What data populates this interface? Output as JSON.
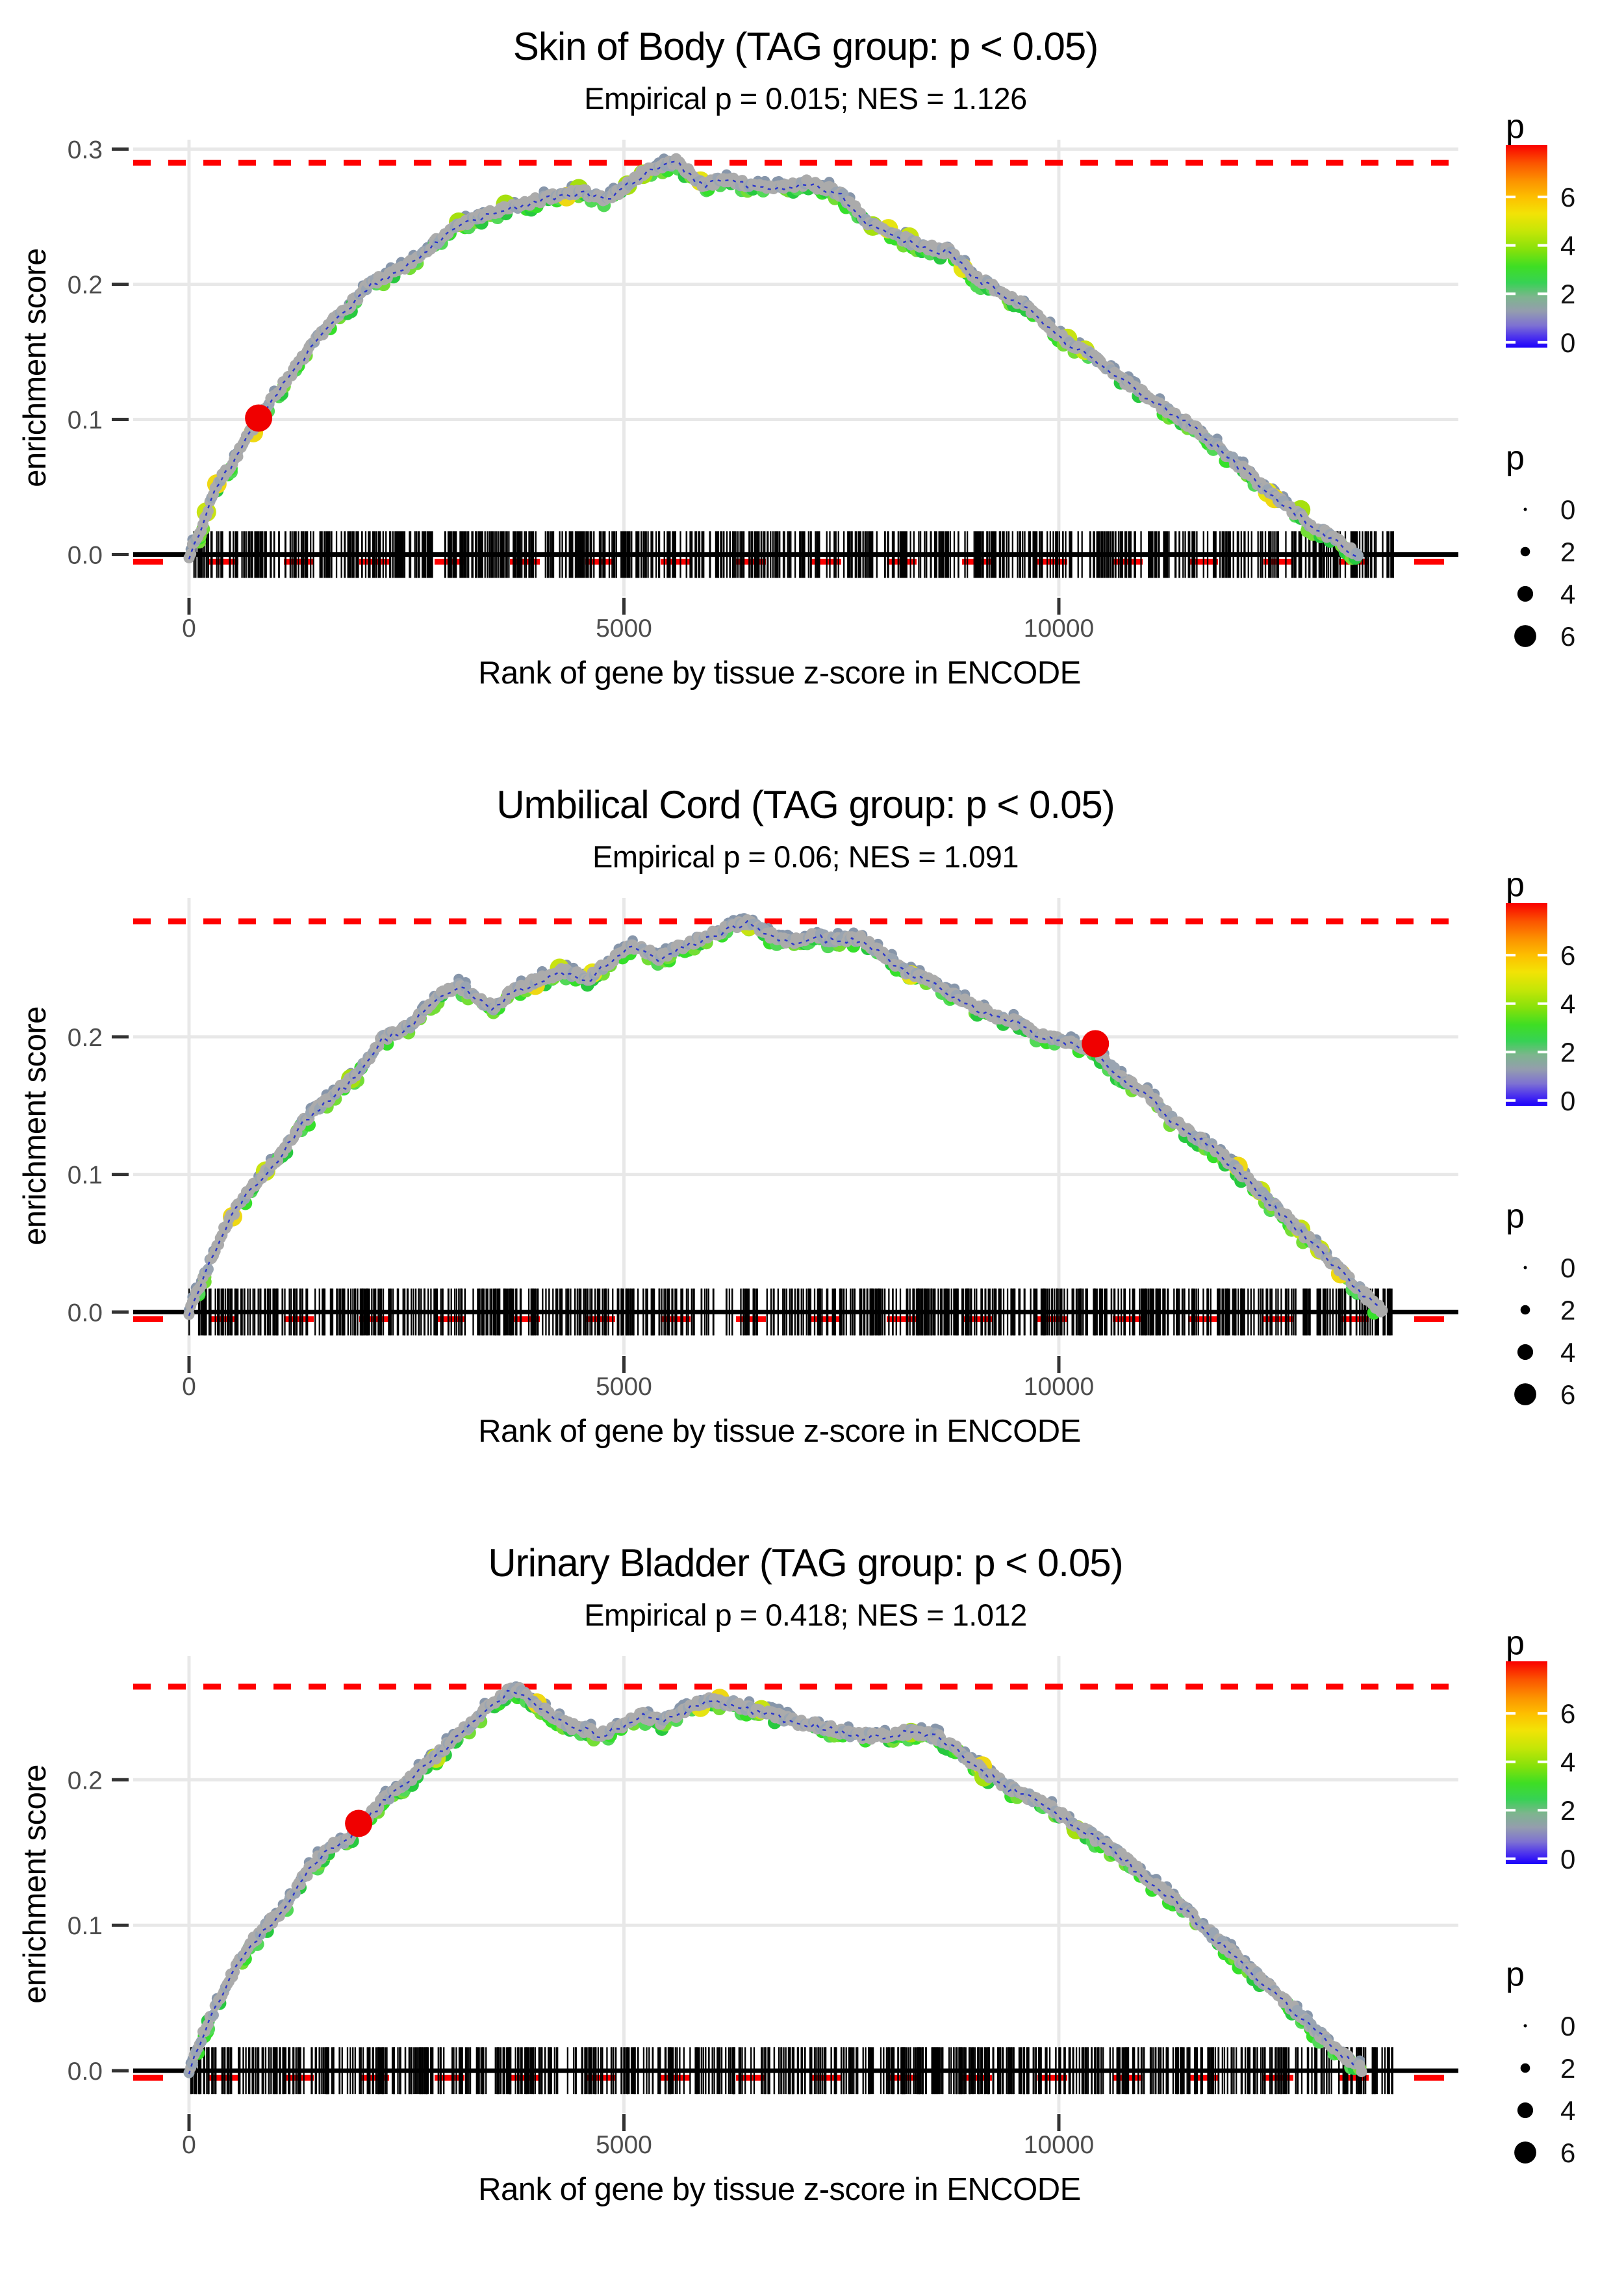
{
  "figure": {
    "kind": "GSEA-style enrichment plots, 3 stacked facets"
  },
  "style": {
    "background": "#ffffff",
    "gridline": "#e8e8e8",
    "tick_mark": "#333333",
    "tick_text": "#4d4d4d",
    "title_text": "#000000",
    "red_line": "#ff0000",
    "marker_red": "#f00000",
    "zero_line": "#000000",
    "rug": "#000000",
    "curve_gray": [
      "#ababab",
      "#9aa5b2",
      "#a3a3a3"
    ],
    "curve_green": [
      "#35e02a",
      "#52d957",
      "#27c93f",
      "#74de35"
    ],
    "curve_slate": "#8796aa",
    "curve_big_accents": [
      "#e6e412",
      "#c8e312",
      "#a6e00f",
      "#efd813"
    ],
    "curve_blue_line": "#2a35cc",
    "gradient_stops": [
      [
        0.0,
        "#fa0000"
      ],
      [
        0.09,
        "#fb5500"
      ],
      [
        0.18,
        "#fc9400"
      ],
      [
        0.26,
        "#fdc000"
      ],
      [
        0.34,
        "#f2e306"
      ],
      [
        0.43,
        "#c3e607"
      ],
      [
        0.52,
        "#84e10b"
      ],
      [
        0.6,
        "#3ede24"
      ],
      [
        0.68,
        "#37d254"
      ],
      [
        0.75,
        "#7db58e"
      ],
      [
        0.82,
        "#949dae"
      ],
      [
        0.89,
        "#7e72d2"
      ],
      [
        0.95,
        "#4a30ee"
      ],
      [
        1.0,
        "#1b00fb"
      ]
    ]
  },
  "chart_data": [
    {
      "type": "line",
      "title": "Skin of Body (TAG group: p < 0.05)",
      "subtitle": "Empirical p = 0.015; NES = 1.126",
      "xlabel": "Rank of gene by tissue z-score in ENCODE",
      "ylabel": "enrichment score",
      "x_tick_labels": [
        "0",
        "5000",
        "10000"
      ],
      "y_tick_labels": [
        "0.0",
        "0.1",
        "0.2",
        "0.3"
      ],
      "ylim": [
        -0.031,
        0.307
      ],
      "xlim": [
        -640,
        14600
      ],
      "grid": "major-only",
      "max_line_es": 0.29,
      "zero_line_es": 0.0,
      "marker": {
        "rank": 800,
        "es": 0.101
      },
      "rug": {
        "count": 760,
        "rank_min": 0,
        "rank_max": 13850
      },
      "curve": [
        [
          0,
          0
        ],
        [
          150,
          0.02
        ],
        [
          300,
          0.05
        ],
        [
          500,
          0.068
        ],
        [
          800,
          0.101
        ],
        [
          1150,
          0.132
        ],
        [
          1550,
          0.166
        ],
        [
          2100,
          0.201
        ],
        [
          2450,
          0.211
        ],
        [
          2750,
          0.227
        ],
        [
          3100,
          0.244
        ],
        [
          3400,
          0.251
        ],
        [
          4000,
          0.262
        ],
        [
          4500,
          0.269
        ],
        [
          4800,
          0.262
        ],
        [
          5250,
          0.284
        ],
        [
          5600,
          0.291
        ],
        [
          5900,
          0.274
        ],
        [
          6200,
          0.278
        ],
        [
          6500,
          0.272
        ],
        [
          6800,
          0.272
        ],
        [
          7100,
          0.275
        ],
        [
          7500,
          0.267
        ],
        [
          7800,
          0.246
        ],
        [
          8100,
          0.236
        ],
        [
          8450,
          0.228
        ],
        [
          8750,
          0.224
        ],
        [
          9050,
          0.205
        ],
        [
          9550,
          0.187
        ],
        [
          10000,
          0.162
        ],
        [
          10350,
          0.148
        ],
        [
          10650,
          0.133
        ],
        [
          11100,
          0.113
        ],
        [
          11600,
          0.092
        ],
        [
          11950,
          0.073
        ],
        [
          12400,
          0.047
        ],
        [
          12900,
          0.022
        ],
        [
          13200,
          0.01
        ],
        [
          13450,
          0
        ]
      ],
      "color_legend": {
        "title": "p",
        "tick_labels": [
          "6",
          "4",
          "2",
          "0"
        ],
        "domain_top": 8.15,
        "domain_bottom": -0.22
      },
      "size_legend": {
        "title": "p",
        "entry_labels": [
          "0",
          "2",
          "4",
          "6"
        ]
      }
    },
    {
      "type": "line",
      "title": "Umbilical Cord (TAG group: p < 0.05)",
      "subtitle": "Empirical p = 0.06; NES = 1.091",
      "xlabel": "Rank of gene by tissue z-score in ENCODE",
      "ylabel": "enrichment score",
      "x_tick_labels": [
        "0",
        "5000",
        "10000"
      ],
      "y_tick_labels": [
        "0.0",
        "0.1",
        "0.2"
      ],
      "ylim": [
        -0.031,
        0.301
      ],
      "xlim": [
        -640,
        14600
      ],
      "grid": "major-only",
      "max_line_es": 0.284,
      "zero_line_es": 0.0,
      "marker": {
        "rank": 10420,
        "es": 0.195
      },
      "rug": {
        "count": 760,
        "rank_min": 0,
        "rank_max": 13850
      },
      "curve": [
        [
          0,
          0
        ],
        [
          200,
          0.03
        ],
        [
          420,
          0.063
        ],
        [
          650,
          0.085
        ],
        [
          820,
          0.097
        ],
        [
          1050,
          0.114
        ],
        [
          1300,
          0.138
        ],
        [
          1600,
          0.155
        ],
        [
          1920,
          0.172
        ],
        [
          2230,
          0.199
        ],
        [
          2560,
          0.209
        ],
        [
          2870,
          0.23
        ],
        [
          3100,
          0.238
        ],
        [
          3300,
          0.228
        ],
        [
          3500,
          0.221
        ],
        [
          3700,
          0.233
        ],
        [
          3980,
          0.241
        ],
        [
          4300,
          0.248
        ],
        [
          4600,
          0.243
        ],
        [
          5090,
          0.267
        ],
        [
          5400,
          0.258
        ],
        [
          5890,
          0.272
        ],
        [
          6430,
          0.284
        ],
        [
          6680,
          0.274
        ],
        [
          6900,
          0.268
        ],
        [
          7150,
          0.274
        ],
        [
          7420,
          0.27
        ],
        [
          7700,
          0.272
        ],
        [
          7900,
          0.264
        ],
        [
          8260,
          0.247
        ],
        [
          8570,
          0.239
        ],
        [
          8890,
          0.227
        ],
        [
          9210,
          0.217
        ],
        [
          9520,
          0.21
        ],
        [
          9850,
          0.2
        ],
        [
          10080,
          0.197
        ],
        [
          10420,
          0.191
        ],
        [
          10710,
          0.171
        ],
        [
          11030,
          0.158
        ],
        [
          11350,
          0.137
        ],
        [
          11830,
          0.117
        ],
        [
          12300,
          0.088
        ],
        [
          12780,
          0.059
        ],
        [
          13250,
          0.029
        ],
        [
          13720,
          0
        ]
      ],
      "color_legend": {
        "title": "p",
        "tick_labels": [
          "6",
          "4",
          "2",
          "0"
        ],
        "domain_top": 8.15,
        "domain_bottom": -0.22
      },
      "size_legend": {
        "title": "p",
        "entry_labels": [
          "0",
          "2",
          "4",
          "6"
        ]
      }
    },
    {
      "type": "line",
      "title": "Urinary Bladder (TAG group: p < 0.05)",
      "subtitle": "Empirical p = 0.418; NES = 1.012",
      "xlabel": "Rank of gene by tissue z-score in ENCODE",
      "ylabel": "enrichment score",
      "x_tick_labels": [
        "0",
        "5000",
        "10000"
      ],
      "y_tick_labels": [
        "0.0",
        "0.1",
        "0.2"
      ],
      "ylim": [
        -0.029,
        0.285
      ],
      "xlim": [
        -640,
        14600
      ],
      "grid": "major-only",
      "max_line_es": 0.264,
      "zero_line_es": 0.0,
      "marker": {
        "rank": 1950,
        "es": 0.17
      },
      "rug": {
        "count": 760,
        "rank_min": 0,
        "rank_max": 13850
      },
      "curve": [
        [
          0,
          0
        ],
        [
          180,
          0.028
        ],
        [
          410,
          0.057
        ],
        [
          650,
          0.083
        ],
        [
          890,
          0.1
        ],
        [
          1060,
          0.109
        ],
        [
          1290,
          0.131
        ],
        [
          1600,
          0.154
        ],
        [
          1840,
          0.16
        ],
        [
          1960,
          0.17
        ],
        [
          2240,
          0.186
        ],
        [
          2630,
          0.205
        ],
        [
          2870,
          0.218
        ],
        [
          3190,
          0.236
        ],
        [
          3500,
          0.253
        ],
        [
          3740,
          0.264
        ],
        [
          3980,
          0.252
        ],
        [
          4140,
          0.245
        ],
        [
          4380,
          0.237
        ],
        [
          4780,
          0.231
        ],
        [
          5170,
          0.245
        ],
        [
          5410,
          0.24
        ],
        [
          5960,
          0.255
        ],
        [
          6200,
          0.253
        ],
        [
          6680,
          0.245
        ],
        [
          6990,
          0.24
        ],
        [
          7310,
          0.236
        ],
        [
          7620,
          0.231
        ],
        [
          7940,
          0.23
        ],
        [
          8260,
          0.233
        ],
        [
          8580,
          0.23
        ],
        [
          8730,
          0.225
        ],
        [
          9050,
          0.21
        ],
        [
          9370,
          0.197
        ],
        [
          9690,
          0.187
        ],
        [
          10000,
          0.177
        ],
        [
          10320,
          0.164
        ],
        [
          10640,
          0.151
        ],
        [
          11030,
          0.132
        ],
        [
          11430,
          0.112
        ],
        [
          11900,
          0.086
        ],
        [
          12380,
          0.06
        ],
        [
          12850,
          0.034
        ],
        [
          13180,
          0.015
        ],
        [
          13490,
          0
        ]
      ],
      "color_legend": {
        "title": "p",
        "tick_labels": [
          "6",
          "4",
          "2",
          "0"
        ],
        "domain_top": 8.15,
        "domain_bottom": -0.22
      },
      "size_legend": {
        "title": "p",
        "entry_labels": [
          "0",
          "2",
          "4",
          "6"
        ]
      }
    }
  ]
}
